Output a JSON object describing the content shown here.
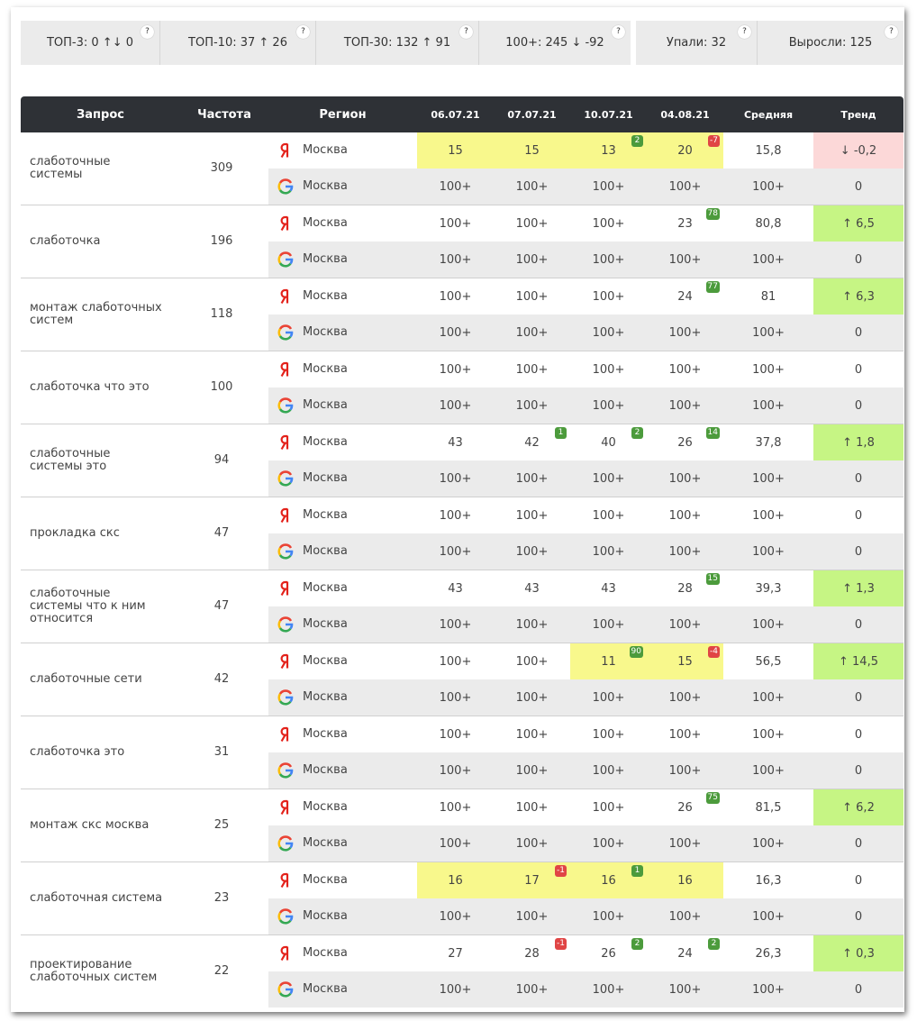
{
  "summary": {
    "help": "?",
    "groups": [
      [
        "ТОП-3: 0 ↑↓ 0",
        "ТОП-10: 37 ↑ 26",
        "ТОП-30: 132 ↑ 91",
        "100+: 245 ↓ -92"
      ],
      [
        "Упали: 32",
        "Выросли: 125"
      ]
    ]
  },
  "table": {
    "columns": [
      "Запрос",
      "Частота",
      "Регион",
      "06.07.21",
      "07.07.21",
      "10.07.21",
      "04.08.21",
      "Средняя",
      "Тренд"
    ],
    "rows": [
      {
        "query": "слаботочные системы",
        "frequency": "309",
        "engines": [
          {
            "engine": "yandex",
            "region": "Москва",
            "positions": [
              "15",
              "15",
              "13",
              "20"
            ],
            "changes": [
              null,
              null,
              "2",
              "-7"
            ],
            "average": "15,8",
            "trend": "↓ -0,2"
          },
          {
            "engine": "google",
            "region": "Москва",
            "positions": [
              "100+",
              "100+",
              "100+",
              "100+"
            ],
            "changes": [
              null,
              null,
              null,
              null
            ],
            "average": "100+",
            "trend": "0"
          }
        ]
      },
      {
        "query": "слаботочка",
        "frequency": "196",
        "engines": [
          {
            "engine": "yandex",
            "region": "Москва",
            "positions": [
              "100+",
              "100+",
              "100+",
              "23"
            ],
            "changes": [
              null,
              null,
              null,
              "78"
            ],
            "average": "80,8",
            "trend": "↑ 6,5"
          },
          {
            "engine": "google",
            "region": "Москва",
            "positions": [
              "100+",
              "100+",
              "100+",
              "100+"
            ],
            "changes": [
              null,
              null,
              null,
              null
            ],
            "average": "100+",
            "trend": "0"
          }
        ]
      },
      {
        "query": "монтаж слаботочных систем",
        "frequency": "118",
        "engines": [
          {
            "engine": "yandex",
            "region": "Москва",
            "positions": [
              "100+",
              "100+",
              "100+",
              "24"
            ],
            "changes": [
              null,
              null,
              null,
              "77"
            ],
            "average": "81",
            "trend": "↑ 6,3"
          },
          {
            "engine": "google",
            "region": "Москва",
            "positions": [
              "100+",
              "100+",
              "100+",
              "100+"
            ],
            "changes": [
              null,
              null,
              null,
              null
            ],
            "average": "100+",
            "trend": "0"
          }
        ]
      },
      {
        "query": "слаботочка что это",
        "frequency": "100",
        "engines": [
          {
            "engine": "yandex",
            "region": "Москва",
            "positions": [
              "100+",
              "100+",
              "100+",
              "100+"
            ],
            "changes": [
              null,
              null,
              null,
              null
            ],
            "average": "100+",
            "trend": "0"
          },
          {
            "engine": "google",
            "region": "Москва",
            "positions": [
              "100+",
              "100+",
              "100+",
              "100+"
            ],
            "changes": [
              null,
              null,
              null,
              null
            ],
            "average": "100+",
            "trend": "0"
          }
        ]
      },
      {
        "query": "слаботочные системы это",
        "frequency": "94",
        "engines": [
          {
            "engine": "yandex",
            "region": "Москва",
            "positions": [
              "43",
              "42",
              "40",
              "26"
            ],
            "changes": [
              null,
              "1",
              "2",
              "14"
            ],
            "average": "37,8",
            "trend": "↑ 1,8"
          },
          {
            "engine": "google",
            "region": "Москва",
            "positions": [
              "100+",
              "100+",
              "100+",
              "100+"
            ],
            "changes": [
              null,
              null,
              null,
              null
            ],
            "average": "100+",
            "trend": "0"
          }
        ]
      },
      {
        "query": "прокладка скс",
        "frequency": "47",
        "engines": [
          {
            "engine": "yandex",
            "region": "Москва",
            "positions": [
              "100+",
              "100+",
              "100+",
              "100+"
            ],
            "changes": [
              null,
              null,
              null,
              null
            ],
            "average": "100+",
            "trend": "0"
          },
          {
            "engine": "google",
            "region": "Москва",
            "positions": [
              "100+",
              "100+",
              "100+",
              "100+"
            ],
            "changes": [
              null,
              null,
              null,
              null
            ],
            "average": "100+",
            "trend": "0"
          }
        ]
      },
      {
        "query": "слаботочные системы что к ним относится",
        "frequency": "47",
        "engines": [
          {
            "engine": "yandex",
            "region": "Москва",
            "positions": [
              "43",
              "43",
              "43",
              "28"
            ],
            "changes": [
              null,
              null,
              null,
              "15"
            ],
            "average": "39,3",
            "trend": "↑ 1,3"
          },
          {
            "engine": "google",
            "region": "Москва",
            "positions": [
              "100+",
              "100+",
              "100+",
              "100+"
            ],
            "changes": [
              null,
              null,
              null,
              null
            ],
            "average": "100+",
            "trend": "0"
          }
        ]
      },
      {
        "query": "слаботочные сети",
        "frequency": "42",
        "engines": [
          {
            "engine": "yandex",
            "region": "Москва",
            "positions": [
              "100+",
              "100+",
              "11",
              "15"
            ],
            "changes": [
              null,
              null,
              "90",
              "-4"
            ],
            "average": "56,5",
            "trend": "↑ 14,5"
          },
          {
            "engine": "google",
            "region": "Москва",
            "positions": [
              "100+",
              "100+",
              "100+",
              "100+"
            ],
            "changes": [
              null,
              null,
              null,
              null
            ],
            "average": "100+",
            "trend": "0"
          }
        ]
      },
      {
        "query": "слаботочка это",
        "frequency": "31",
        "engines": [
          {
            "engine": "yandex",
            "region": "Москва",
            "positions": [
              "100+",
              "100+",
              "100+",
              "100+"
            ],
            "changes": [
              null,
              null,
              null,
              null
            ],
            "average": "100+",
            "trend": "0"
          },
          {
            "engine": "google",
            "region": "Москва",
            "positions": [
              "100+",
              "100+",
              "100+",
              "100+"
            ],
            "changes": [
              null,
              null,
              null,
              null
            ],
            "average": "100+",
            "trend": "0"
          }
        ]
      },
      {
        "query": "монтаж скс москва",
        "frequency": "25",
        "engines": [
          {
            "engine": "yandex",
            "region": "Москва",
            "positions": [
              "100+",
              "100+",
              "100+",
              "26"
            ],
            "changes": [
              null,
              null,
              null,
              "75"
            ],
            "average": "81,5",
            "trend": "↑ 6,2"
          },
          {
            "engine": "google",
            "region": "Москва",
            "positions": [
              "100+",
              "100+",
              "100+",
              "100+"
            ],
            "changes": [
              null,
              null,
              null,
              null
            ],
            "average": "100+",
            "trend": "0"
          }
        ]
      },
      {
        "query": "слаботочная система",
        "frequency": "23",
        "engines": [
          {
            "engine": "yandex",
            "region": "Москва",
            "positions": [
              "16",
              "17",
              "16",
              "16"
            ],
            "changes": [
              null,
              "-1",
              "1",
              null
            ],
            "average": "16,3",
            "trend": "0"
          },
          {
            "engine": "google",
            "region": "Москва",
            "positions": [
              "100+",
              "100+",
              "100+",
              "100+"
            ],
            "changes": [
              null,
              null,
              null,
              null
            ],
            "average": "100+",
            "trend": "0"
          }
        ]
      },
      {
        "query": "проектирование слаботочных систем",
        "frequency": "22",
        "engines": [
          {
            "engine": "yandex",
            "region": "Москва",
            "positions": [
              "27",
              "28",
              "26",
              "24"
            ],
            "changes": [
              null,
              "-1",
              "2",
              "2"
            ],
            "average": "26,3",
            "trend": "↑ 0,3"
          },
          {
            "engine": "google",
            "region": "Москва",
            "positions": [
              "100+",
              "100+",
              "100+",
              "100+"
            ],
            "changes": [
              null,
              null,
              null,
              null
            ],
            "average": "100+",
            "trend": "0"
          }
        ]
      }
    ]
  }
}
